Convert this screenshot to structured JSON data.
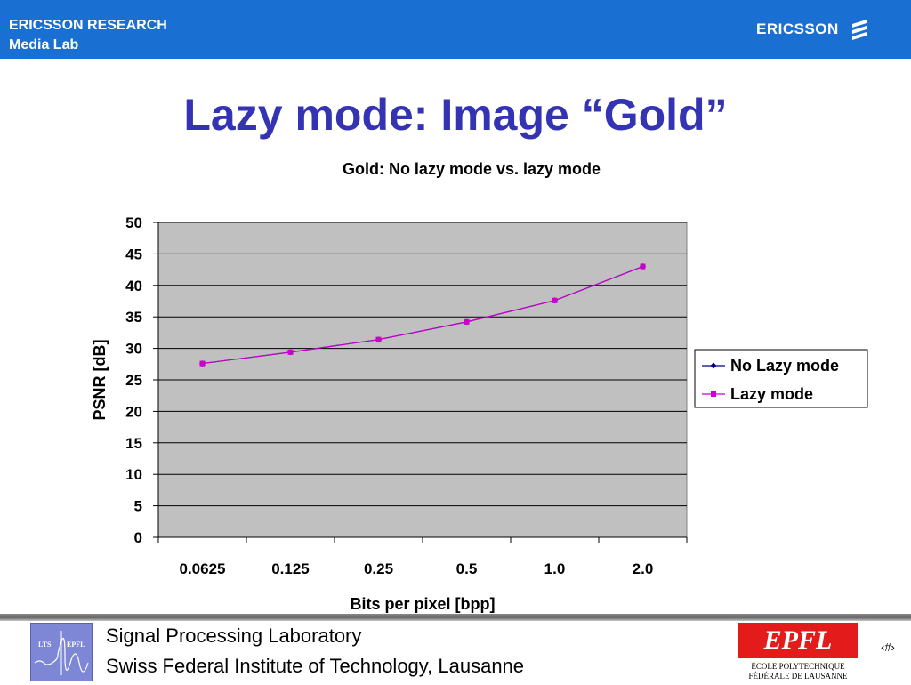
{
  "header": {
    "line1": "ERICSSON RESEARCH",
    "line2": "Media Lab",
    "brand": "ERICSSON",
    "bg_color": "#1a6fd2"
  },
  "slide": {
    "title": "Lazy mode: Image “Gold”",
    "title_color": "#3333b3"
  },
  "chart_data": {
    "type": "line",
    "title": "Gold: No lazy mode vs. lazy mode",
    "xlabel": "Bits per pixel [bpp]",
    "ylabel": "PSNR [dB]",
    "categories": [
      "0.0625",
      "0.125",
      "0.25",
      "0.5",
      "1.0",
      "2.0"
    ],
    "ylim": [
      0,
      50
    ],
    "yticks": [
      "0",
      "5",
      "10",
      "15",
      "20",
      "25",
      "30",
      "35",
      "40",
      "45",
      "50"
    ],
    "grid": true,
    "plot_bg": "#c0c0c0",
    "legend_position": "right",
    "series": [
      {
        "name": "No Lazy mode",
        "color": "#000080",
        "marker": "diamond",
        "values": [
          27.6,
          29.4,
          31.4,
          34.2,
          37.6,
          43.0
        ]
      },
      {
        "name": "Lazy mode",
        "color": "#cc00cc",
        "marker": "square",
        "values": [
          27.6,
          29.4,
          31.4,
          34.2,
          37.6,
          43.0
        ]
      }
    ]
  },
  "footer": {
    "line1": "Signal Processing Laboratory",
    "line2": "Swiss Federal Institute of Technology, Lausanne",
    "page_number": "‹#›",
    "lts_logo_text": [
      "LTS",
      "EPFL"
    ],
    "epfl_logo_text": [
      "EPFL",
      "ÉCOLE POLYTECHNIQUE",
      "FÉDÉRALE DE LAUSANNE"
    ]
  }
}
